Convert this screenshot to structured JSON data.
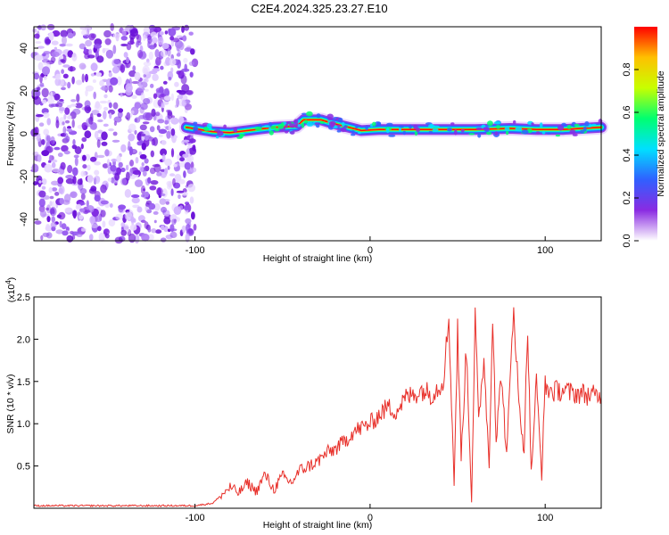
{
  "title": "C2E4.2024.325.23.27.E10",
  "chart_data": [
    {
      "type": "heatmap",
      "xlabel": "Height of straight line (km)",
      "ylabel": "Frequency (Hz)",
      "xlim": [
        -192,
        132
      ],
      "ylim": [
        -50,
        50
      ],
      "x_ticks": [
        -100,
        0,
        100
      ],
      "y_ticks": [
        -40,
        -20,
        0,
        20,
        40
      ],
      "noise_region_x": [
        -192,
        -100
      ],
      "ridge": [
        {
          "x": -105,
          "y": 3
        },
        {
          "x": -90,
          "y": 1
        },
        {
          "x": -80,
          "y": 0.5
        },
        {
          "x": -65,
          "y": 2
        },
        {
          "x": -55,
          "y": 3
        },
        {
          "x": -42,
          "y": 3.5
        },
        {
          "x": -38,
          "y": 6.5
        },
        {
          "x": -28,
          "y": 6.5
        },
        {
          "x": -22,
          "y": 5
        },
        {
          "x": -12,
          "y": 3
        },
        {
          "x": -5,
          "y": 1.5
        },
        {
          "x": 5,
          "y": 2
        },
        {
          "x": 20,
          "y": 2
        },
        {
          "x": 40,
          "y": 2
        },
        {
          "x": 60,
          "y": 2
        },
        {
          "x": 80,
          "y": 2.5
        },
        {
          "x": 95,
          "y": 2
        },
        {
          "x": 110,
          "y": 2
        },
        {
          "x": 132,
          "y": 3
        }
      ],
      "colorbar": {
        "label": "Normalized spectral amplitude",
        "ticks": [
          0.0,
          0.2,
          0.4,
          0.6,
          0.8
        ],
        "tick_labels": [
          "0.0",
          "0.2",
          "0.4",
          "0.6",
          "0.8"
        ],
        "colors": [
          "#ffffff",
          "#8a2be2",
          "#3060ff",
          "#00e0ff",
          "#00ff70",
          "#c8ff00",
          "#ffc000",
          "#ff0000"
        ]
      }
    },
    {
      "type": "line",
      "xlabel": "Height of straight line (km)",
      "ylabel": "SNR (10 * v/v)",
      "y_multiplier": "(x10",
      "y_multiplier_exp": "4",
      "y_multiplier_close": ")",
      "xlim": [
        -192,
        132
      ],
      "ylim": [
        0,
        2.5
      ],
      "x_ticks": [
        -100,
        0,
        100
      ],
      "y_ticks": [
        0.5,
        1.0,
        1.5,
        2.0,
        2.5
      ],
      "y_tick_labels": [
        "0.5",
        "1.0",
        "1.5",
        "2.0",
        "2.5"
      ],
      "color": "#e8302a",
      "series": [
        {
          "x": [
            -192,
            -170,
            -150,
            -130,
            -110,
            -100,
            -90,
            -85,
            -80,
            -75,
            -70,
            -65,
            -60,
            -55,
            -50,
            -45,
            -40,
            -35,
            -30,
            -25,
            -20,
            -15,
            -10,
            -5,
            0,
            5,
            10,
            15,
            20,
            25,
            30,
            35,
            40,
            42,
            45,
            48,
            50,
            52,
            55,
            58,
            60,
            62,
            65,
            68,
            70,
            72,
            75,
            78,
            80,
            82,
            85,
            88,
            90,
            92,
            95,
            98,
            100,
            102,
            105,
            110,
            115,
            120,
            125,
            132
          ],
          "values": [
            0.03,
            0.03,
            0.03,
            0.03,
            0.03,
            0.03,
            0.06,
            0.15,
            0.25,
            0.18,
            0.3,
            0.2,
            0.4,
            0.22,
            0.38,
            0.3,
            0.45,
            0.5,
            0.55,
            0.65,
            0.7,
            0.78,
            0.9,
            0.95,
            1.0,
            1.1,
            1.2,
            1.15,
            1.3,
            1.35,
            1.4,
            1.35,
            1.45,
            1.55,
            2.25,
            0.3,
            2.1,
            0.6,
            1.9,
            0.1,
            2.3,
            1.0,
            1.8,
            0.5,
            2.35,
            0.8,
            1.6,
            0.6,
            1.5,
            2.45,
            1.2,
            0.7,
            2.2,
            0.4,
            1.5,
            0.4,
            1.45,
            1.4,
            1.38,
            1.4,
            1.36,
            1.36,
            1.34,
            1.32
          ]
        }
      ]
    }
  ]
}
